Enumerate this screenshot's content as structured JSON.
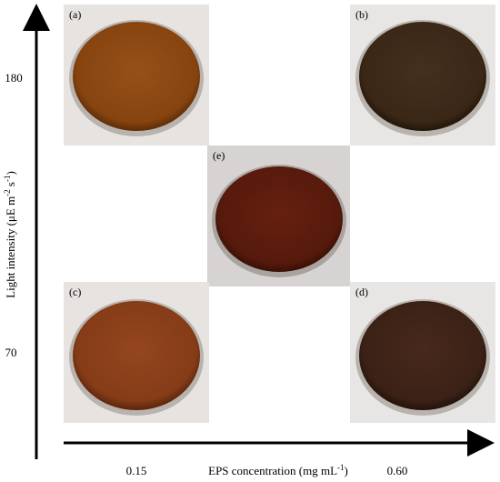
{
  "y_axis": {
    "label": [
      "Light intensity (μE m",
      "-2",
      " s",
      "-1",
      ")"
    ],
    "ticks": [
      "180",
      "70"
    ]
  },
  "x_axis": {
    "label": [
      "EPS concentration (mg mL",
      "-1",
      ")"
    ],
    "ticks": [
      "0.15",
      "0.60"
    ]
  },
  "panels": [
    {
      "label": "(a)"
    },
    {
      "label": "(b)"
    },
    {
      "label": "(e)"
    },
    {
      "label": "(c)"
    },
    {
      "label": "(d)"
    }
  ]
}
